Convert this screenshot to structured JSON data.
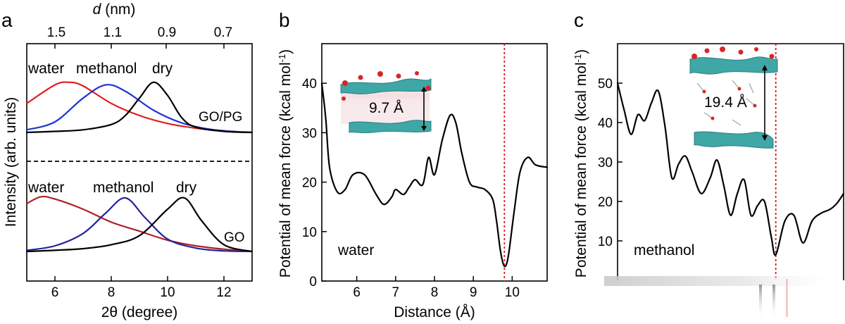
{
  "figure": {
    "panels": {
      "a": "a",
      "b": "b",
      "c": "c"
    }
  },
  "chart_data": [
    {
      "panel": "a",
      "type": "line",
      "xlabel": "2θ (degree)",
      "ylabel": "Intensity (arb. units)",
      "top_axis_label": "d (nm)",
      "top_axis_label_var": "d",
      "top_axis_label_unit": "(nm)",
      "top_ticks": [
        "1.5",
        "1.1",
        "0.9",
        "0.7"
      ],
      "xlim": [
        5,
        13
      ],
      "xticks": [
        6,
        8,
        10,
        12
      ],
      "x_tick_labels": [
        "6",
        "8",
        "10",
        "12"
      ],
      "groups": [
        {
          "name": "GO/PG",
          "label": "GO/PG",
          "series": [
            {
              "name": "water",
              "color": "#e41a1c",
              "x": [
                5,
                6,
                6.5,
                7,
                8,
                9,
                10,
                11,
                12,
                13
              ],
              "y": [
                0.55,
                0.9,
                0.95,
                0.88,
                0.55,
                0.32,
                0.17,
                0.08,
                0.03,
                0.0
              ]
            },
            {
              "name": "methanol",
              "color": "#1f33d8",
              "x": [
                5,
                6,
                7,
                7.8,
                8.5,
                9.5,
                10.5,
                11.5,
                12.5,
                13
              ],
              "y": [
                0.05,
                0.2,
                0.65,
                0.9,
                0.78,
                0.42,
                0.18,
                0.06,
                0.01,
                0.0
              ]
            },
            {
              "name": "dry",
              "color": "#000000",
              "x": [
                5,
                6,
                7,
                8,
                8.5,
                9,
                9.5,
                10,
                10.5,
                11,
                12,
                13
              ],
              "y": [
                0.0,
                0.02,
                0.05,
                0.15,
                0.32,
                0.65,
                0.95,
                0.7,
                0.28,
                0.1,
                0.02,
                0.0
              ]
            }
          ]
        },
        {
          "name": "GO",
          "label": "GO",
          "series": [
            {
              "name": "water",
              "color": "#b01f24",
              "x": [
                5,
                5.5,
                6,
                7,
                8,
                9,
                10,
                11,
                12,
                13
              ],
              "y": [
                0.85,
                0.97,
                0.93,
                0.75,
                0.52,
                0.36,
                0.2,
                0.1,
                0.04,
                0.0
              ]
            },
            {
              "name": "methanol",
              "color": "#23239c",
              "x": [
                5,
                6,
                7,
                7.8,
                8.5,
                9.2,
                10,
                11,
                12,
                13
              ],
              "y": [
                0.02,
                0.1,
                0.32,
                0.68,
                0.95,
                0.6,
                0.22,
                0.06,
                0.01,
                0.0
              ]
            },
            {
              "name": "dry",
              "color": "#000000",
              "x": [
                5,
                6,
                7,
                8,
                9,
                10,
                10.6,
                11.2,
                12,
                13
              ],
              "y": [
                0.0,
                0.02,
                0.05,
                0.12,
                0.28,
                0.75,
                0.95,
                0.55,
                0.12,
                0.0
              ]
            }
          ]
        }
      ]
    },
    {
      "panel": "b",
      "type": "line",
      "xlabel": "Distance (Å)",
      "ylabel": "Potential of mean force (kcal mol⁻¹)",
      "ylabel_main": "Potential of mean force (kcal mol",
      "ylabel_sup": "-1",
      "ylabel_close": ")",
      "xlim": [
        5.1,
        10.9
      ],
      "ylim": [
        0,
        48
      ],
      "xticks": [
        6,
        7,
        8,
        9,
        10
      ],
      "x_tick_labels": [
        "6",
        "7",
        "8",
        "9",
        "10"
      ],
      "yticks": [
        0,
        10,
        20,
        30,
        40
      ],
      "y_tick_labels": [
        "0",
        "10",
        "20",
        "30",
        "40"
      ],
      "series": [
        {
          "name": "water",
          "color": "#000000",
          "x": [
            5.1,
            5.2,
            5.3,
            5.5,
            5.7,
            5.9,
            6.2,
            6.5,
            6.7,
            6.9,
            7.0,
            7.2,
            7.35,
            7.5,
            7.7,
            7.85,
            8.0,
            8.2,
            8.4,
            8.55,
            8.7,
            8.9,
            9.1,
            9.3,
            9.5,
            9.6,
            9.7,
            9.8,
            9.9,
            10.05,
            10.2,
            10.4,
            10.6,
            10.9
          ],
          "y": [
            40,
            33,
            23,
            18,
            18.5,
            21.5,
            21.5,
            17.5,
            15.5,
            17,
            18.5,
            17.5,
            19,
            20.5,
            19.5,
            25,
            21.5,
            28.5,
            33.5,
            32,
            26,
            20,
            19,
            18.5,
            16.5,
            12,
            6,
            3,
            5,
            14,
            22,
            25,
            23.5,
            23
          ]
        }
      ],
      "vline": 9.8,
      "series_label": "water",
      "inset_label": "9.7 Å"
    },
    {
      "panel": "c",
      "type": "line",
      "xlabel": "",
      "ylabel": "Potential of mean force (kcal mol⁻¹)",
      "ylabel_main": "Potential of mean force (kcal mol",
      "ylabel_sup": "-1",
      "ylabel_close": ")",
      "ylim": [
        0,
        60
      ],
      "yticks": [
        10,
        20,
        30,
        40,
        50
      ],
      "y_tick_labels": [
        "10",
        "20",
        "30",
        "40",
        "50"
      ],
      "series": [
        {
          "name": "methanol",
          "color": "#000000",
          "x": [
            0,
            0.03,
            0.06,
            0.09,
            0.12,
            0.15,
            0.18,
            0.21,
            0.24,
            0.27,
            0.3,
            0.33,
            0.37,
            0.41,
            0.44,
            0.47,
            0.5,
            0.53,
            0.56,
            0.59,
            0.62,
            0.65,
            0.68,
            0.7,
            0.74,
            0.78,
            0.82,
            0.86,
            0.9,
            0.94,
            0.97,
            1.0
          ],
          "y": [
            50,
            43,
            37,
            42,
            40.5,
            45,
            48,
            39,
            26,
            29.5,
            31.5,
            27.5,
            22,
            26,
            30.5,
            24,
            16.5,
            22,
            25.5,
            16.5,
            19,
            20,
            11,
            6.5,
            15,
            16.5,
            9.5,
            15,
            17,
            18,
            19.5,
            22
          ]
        }
      ],
      "vline_frac": 0.7,
      "series_label": "methanol",
      "inset_label": "19.4 Å"
    }
  ]
}
